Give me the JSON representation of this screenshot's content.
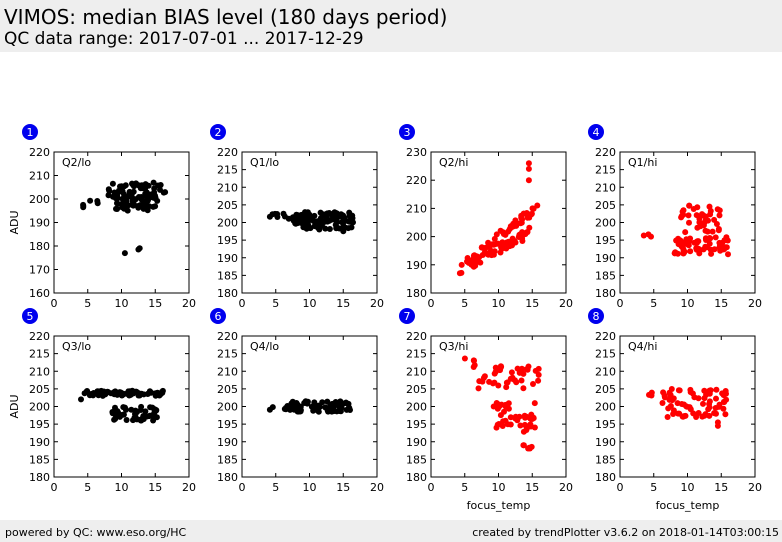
{
  "header": {
    "title": "VIMOS: median BIAS level (180 days period)",
    "subtitle": "QC data range: 2017-07-01 ... 2017-12-29"
  },
  "footer": {
    "left": "powered by QC: www.eso.org/HC",
    "right": "created by trendPlotter v3.6.2 on 2018-01-14T03:00:15"
  },
  "colors": {
    "black_series": "#000000",
    "red_series": "#ff0000",
    "badge": "#0000ee",
    "header_bg": "#eeeeee"
  },
  "chart_data": [
    {
      "type": "scatter",
      "number": "1",
      "label": "Q2/lo",
      "color": "black",
      "xlim": [
        0,
        20
      ],
      "ylim": [
        160,
        220
      ],
      "xticks": [
        "0",
        "5",
        "10",
        "15",
        "20"
      ],
      "yticks": [
        "160",
        "170",
        "180",
        "190",
        "200",
        "210",
        "220"
      ],
      "xlabel": "",
      "ylabel": "ADU",
      "clusters": [
        {
          "x": [
            4.0,
            4.5
          ],
          "y": [
            196,
            197.5
          ]
        },
        {
          "x": [
            5,
            7
          ],
          "y": [
            197.5,
            199.5
          ]
        },
        {
          "x": [
            8,
            16.5
          ],
          "y": [
            199,
            207
          ],
          "n": 60
        },
        {
          "x": [
            8.5,
            15.5
          ],
          "y": [
            195,
            201
          ],
          "n": 40
        }
      ],
      "points": [
        {
          "x": 10.5,
          "y": 177
        },
        {
          "x": 12.5,
          "y": 178.5
        },
        {
          "x": 12.7,
          "y": 179
        }
      ]
    },
    {
      "type": "scatter",
      "number": "2",
      "label": "Q1/lo",
      "color": "black",
      "xlim": [
        0,
        20
      ],
      "ylim": [
        180,
        220
      ],
      "xticks": [
        "0",
        "5",
        "10",
        "15",
        "20"
      ],
      "yticks": [
        "180",
        "185",
        "190",
        "195",
        "200",
        "205",
        "210",
        "215",
        "220"
      ],
      "xlabel": "",
      "ylabel": "",
      "clusters": [
        {
          "x": [
            4,
            7
          ],
          "y": [
            201,
            202.5
          ],
          "n": 8
        },
        {
          "x": [
            7.5,
            10
          ],
          "y": [
            199.5,
            202.5
          ],
          "n": 30
        },
        {
          "x": [
            9,
            16.5
          ],
          "y": [
            198,
            203
          ],
          "n": 80
        }
      ],
      "points": [
        {
          "x": 15,
          "y": 197.5
        }
      ]
    },
    {
      "type": "scatter",
      "number": "3",
      "label": "Q2/hi",
      "color": "red",
      "xlim": [
        0,
        20
      ],
      "ylim": [
        180,
        230
      ],
      "xticks": [
        "0",
        "5",
        "10",
        "15",
        "20"
      ],
      "yticks": [
        "180",
        "190",
        "200",
        "210",
        "220",
        "230"
      ],
      "xlabel": "",
      "ylabel": "",
      "trends": [
        {
          "x": [
            4,
            15.5
          ],
          "y": [
            188,
            210
          ],
          "n": 60
        },
        {
          "x": [
            6,
            15.5
          ],
          "y": [
            190,
            203
          ],
          "n": 50
        }
      ],
      "points": [
        {
          "x": 14.5,
          "y": 220
        },
        {
          "x": 14.5,
          "y": 224
        },
        {
          "x": 14.5,
          "y": 226
        }
      ]
    },
    {
      "type": "scatter",
      "number": "4",
      "label": "Q1/hi",
      "color": "red",
      "xlim": [
        0,
        20
      ],
      "ylim": [
        180,
        220
      ],
      "xticks": [
        "0",
        "5",
        "10",
        "15",
        "20"
      ],
      "yticks": [
        "180",
        "185",
        "190",
        "195",
        "200",
        "205",
        "210",
        "215",
        "220"
      ],
      "xlabel": "",
      "ylabel": "",
      "clusters": [
        {
          "x": [
            3.5,
            5
          ],
          "y": [
            196,
            199
          ],
          "n": 3
        },
        {
          "x": [
            8,
            16
          ],
          "y": [
            191,
            196
          ],
          "n": 60
        },
        {
          "x": [
            9,
            15
          ],
          "y": [
            197,
            205
          ],
          "n": 40
        }
      ],
      "points": [
        {
          "x": 16,
          "y": 191
        }
      ]
    },
    {
      "type": "scatter",
      "number": "5",
      "label": "Q3/lo",
      "color": "black",
      "xlim": [
        0,
        20
      ],
      "ylim": [
        180,
        220
      ],
      "xticks": [
        "0",
        "5",
        "10",
        "15",
        "20"
      ],
      "yticks": [
        "180",
        "185",
        "190",
        "195",
        "200",
        "205",
        "210",
        "215",
        "220"
      ],
      "xlabel": "",
      "ylabel": "ADU",
      "clusters": [
        {
          "x": [
            4.5,
            16.5
          ],
          "y": [
            203,
            204.5
          ],
          "n": 70
        },
        {
          "x": [
            8.5,
            15.5
          ],
          "y": [
            196,
            200
          ],
          "n": 50
        }
      ],
      "points": [
        {
          "x": 4,
          "y": 202
        }
      ]
    },
    {
      "type": "scatter",
      "number": "6",
      "label": "Q4/lo",
      "color": "black",
      "xlim": [
        0,
        20
      ],
      "ylim": [
        180,
        220
      ],
      "xticks": [
        "0",
        "5",
        "10",
        "15",
        "20"
      ],
      "yticks": [
        "180",
        "185",
        "190",
        "195",
        "200",
        "205",
        "210",
        "215",
        "220"
      ],
      "xlabel": "",
      "ylabel": "",
      "clusters": [
        {
          "x": [
            4,
            7
          ],
          "y": [
            199,
            200.5
          ],
          "n": 6
        },
        {
          "x": [
            7,
            16
          ],
          "y": [
            198.5,
            201.5
          ],
          "n": 80
        }
      ],
      "points": []
    },
    {
      "type": "scatter",
      "number": "7",
      "label": "Q3/hi",
      "color": "red",
      "xlim": [
        0,
        20
      ],
      "ylim": [
        180,
        220
      ],
      "xticks": [
        "0",
        "5",
        "10",
        "15",
        "20"
      ],
      "yticks": [
        "180",
        "185",
        "190",
        "195",
        "200",
        "205",
        "210",
        "215",
        "220"
      ],
      "xlabel": "focus_temp",
      "ylabel": "",
      "clusters": [
        {
          "x": [
            4,
            7
          ],
          "y": [
            210,
            214
          ],
          "n": 5
        },
        {
          "x": [
            7,
            16
          ],
          "y": [
            205,
            212
          ],
          "n": 40
        },
        {
          "x": [
            9,
            15.5
          ],
          "y": [
            194,
            202
          ],
          "n": 40
        },
        {
          "x": [
            13.5,
            15
          ],
          "y": [
            188,
            195
          ],
          "n": 12
        }
      ],
      "points": []
    },
    {
      "type": "scatter",
      "number": "8",
      "label": "Q4/hi",
      "color": "red",
      "xlim": [
        0,
        20
      ],
      "ylim": [
        180,
        220
      ],
      "xticks": [
        "0",
        "5",
        "10",
        "15",
        "20"
      ],
      "yticks": [
        "180",
        "185",
        "190",
        "195",
        "200",
        "205",
        "210",
        "215",
        "220"
      ],
      "xlabel": "focus_temp",
      "ylabel": "",
      "clusters": [
        {
          "x": [
            4,
            5
          ],
          "y": [
            203,
            204
          ],
          "n": 3
        },
        {
          "x": [
            6,
            16
          ],
          "y": [
            197,
            205
          ],
          "n": 70
        }
      ],
      "points": [
        {
          "x": 14.5,
          "y": 194.5
        },
        {
          "x": 14.5,
          "y": 195.5
        }
      ]
    }
  ]
}
